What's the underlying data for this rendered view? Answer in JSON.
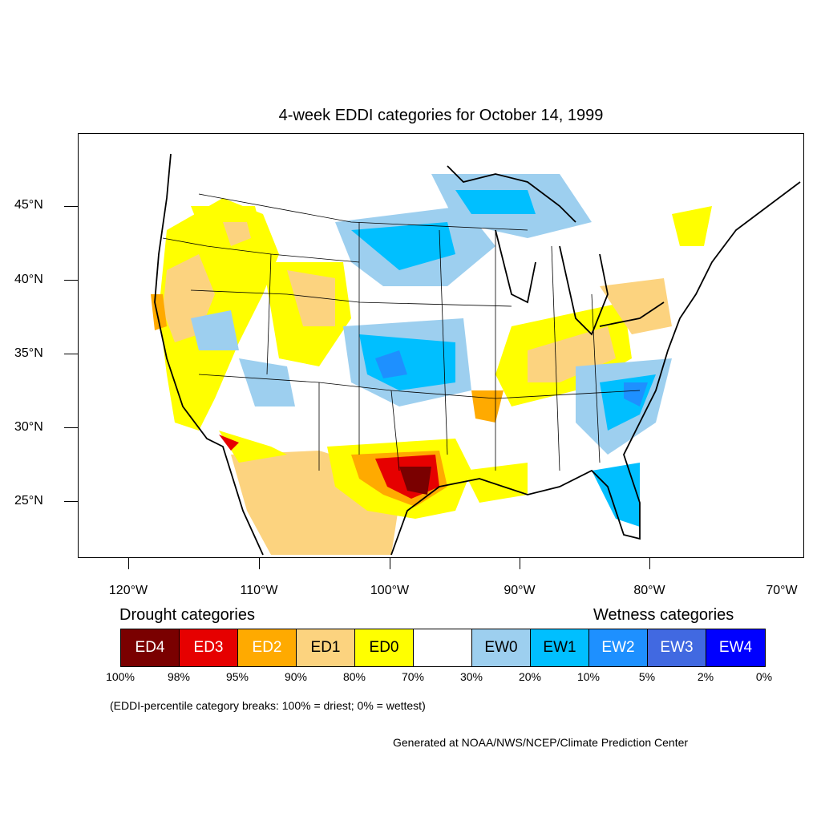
{
  "title": "4-week EDDI categories for October 14, 1999",
  "lat_labels": [
    "45°N",
    "40°N",
    "35°N",
    "30°N",
    "25°N"
  ],
  "lon_labels": [
    "120°W",
    "110°W",
    "100°W",
    "90°W",
    "80°W",
    "70°W"
  ],
  "legend": {
    "drought_heading": "Drought categories",
    "wetness_heading": "Wetness categories",
    "categories": [
      {
        "label": "ED4",
        "color": "#7a0000",
        "text_color": "#ffffff"
      },
      {
        "label": "ED3",
        "color": "#e60000",
        "text_color": "#ffffff"
      },
      {
        "label": "ED2",
        "color": "#ffaa00",
        "text_color": "#ffffff"
      },
      {
        "label": "ED1",
        "color": "#fcd37f",
        "text_color": "#000000"
      },
      {
        "label": "ED0",
        "color": "#ffff00",
        "text_color": "#000000"
      },
      {
        "label": "",
        "color": "#ffffff",
        "text_color": "#000000"
      },
      {
        "label": "EW0",
        "color": "#9dcfef",
        "text_color": "#000000"
      },
      {
        "label": "EW1",
        "color": "#00bfff",
        "text_color": "#000000"
      },
      {
        "label": "EW2",
        "color": "#1e90ff",
        "text_color": "#ffffff"
      },
      {
        "label": "EW3",
        "color": "#4169e1",
        "text_color": "#ffffff"
      },
      {
        "label": "EW4",
        "color": "#0000ff",
        "text_color": "#ffffff"
      }
    ],
    "percent_breaks": [
      "100%",
      "98%",
      "95%",
      "90%",
      "80%",
      "70%",
      "30%",
      "20%",
      "10%",
      "5%",
      "2%",
      "0%"
    ]
  },
  "note": "(EDDI-percentile category breaks: 100% = driest; 0% = wettest)",
  "credit": "Generated at NOAA/NWS/NCEP/Climate Prediction Center"
}
